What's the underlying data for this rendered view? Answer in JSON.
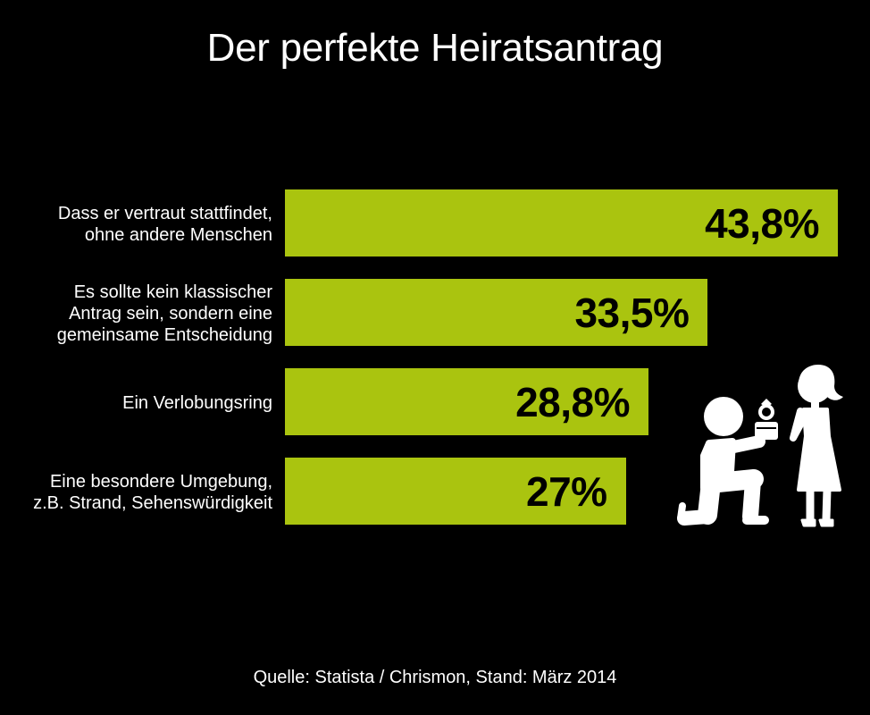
{
  "colors": {
    "background": "#000000",
    "bar": "#aac40f",
    "text": "#ffffff",
    "value_text": "#000000"
  },
  "illustration": {
    "icon": "proposal-icon"
  },
  "chart_data": {
    "type": "bar",
    "orientation": "horizontal",
    "title": "Der perfekte Heiratsantrag",
    "categories": [
      "Dass er vertraut stattfindet,\nohne andere Menschen",
      "Es sollte kein klassischer\nAntrag sein, sondern eine\ngemeinsame Entscheidung",
      "Ein Verlobungsring",
      "Eine besondere Umgebung,\nz.B. Strand, Sehenswürdigkeit"
    ],
    "values": [
      43.8,
      33.5,
      28.8,
      27
    ],
    "value_labels": [
      "43,8%",
      "33,5%",
      "28,8%",
      "27%"
    ],
    "xlabel": "",
    "ylabel": "",
    "grid": false,
    "axes_visible": false,
    "legend": "none",
    "source": "Quelle: Statista / Chrismon, Stand: März 2014"
  }
}
